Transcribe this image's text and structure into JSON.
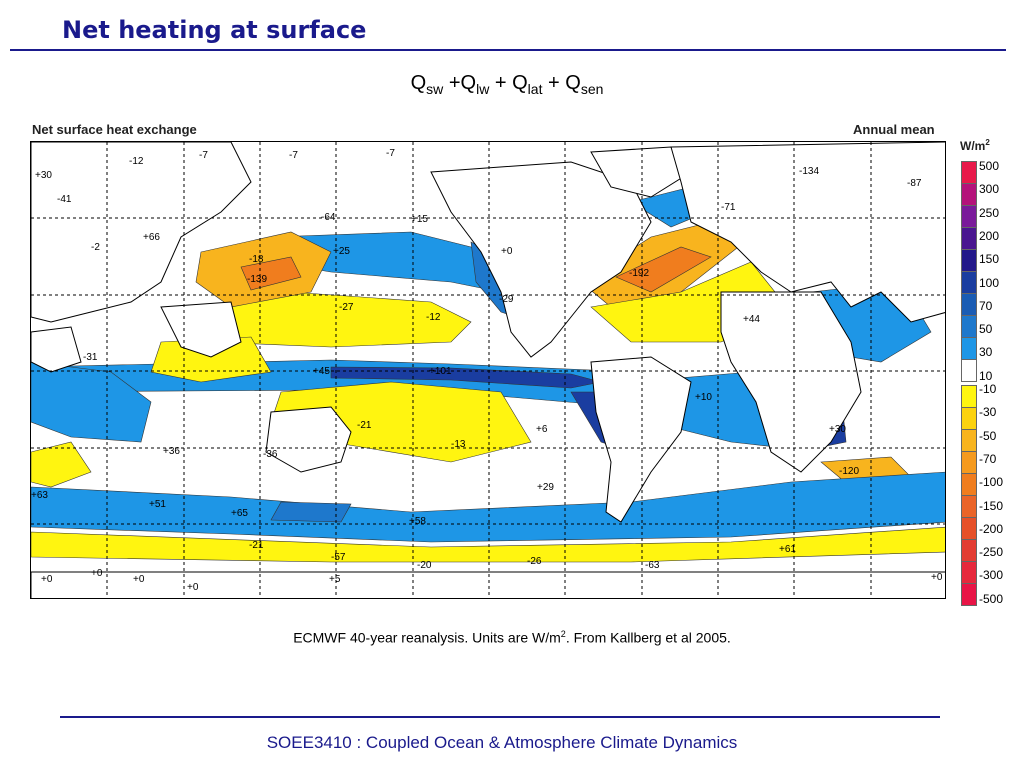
{
  "slide": {
    "title": "Net heating at surface",
    "formula": {
      "q1": "Q",
      "s1": "sw",
      "op1": " +",
      "q2": "Q",
      "s2": "lw",
      "op2": " + ",
      "q3": "Q",
      "s3": "lat",
      "op3": " + ",
      "q4": "Q",
      "s4": "sen"
    },
    "caption_main": "ECMWF 40-year reanalysis. Units are W/m",
    "caption_sup": "2",
    "caption_end": ". From Kallberg et al 2005.",
    "footer": "SOEE3410 : Coupled Ocean & Atmosphere Climate Dynamics"
  },
  "figure": {
    "title": "Net surface heat exchange",
    "period": "Annual mean",
    "unit_base": "W/m",
    "unit_sup": "2",
    "colorbar": {
      "positive": [
        {
          "label": "500",
          "color": "#e8194a"
        },
        {
          "label": "300",
          "color": "#b4127a"
        },
        {
          "label": "250",
          "color": "#7a1a9a"
        },
        {
          "label": "200",
          "color": "#4a1590"
        },
        {
          "label": "150",
          "color": "#23188a"
        },
        {
          "label": "100",
          "color": "#1a3da0"
        },
        {
          "label": "70",
          "color": "#1a5cb4"
        },
        {
          "label": "50",
          "color": "#1e78cc"
        },
        {
          "label": "30",
          "color": "#1e96e6"
        },
        {
          "label": "10",
          "color": "#ffffff"
        }
      ],
      "negative": [
        {
          "label": "-10",
          "color": "#fff510"
        },
        {
          "label": "-30",
          "color": "#fcd20e"
        },
        {
          "label": "-50",
          "color": "#f8b41e"
        },
        {
          "label": "-70",
          "color": "#f59a1e"
        },
        {
          "label": "-100",
          "color": "#f07d1e"
        },
        {
          "label": "-150",
          "color": "#ea6428"
        },
        {
          "label": "-200",
          "color": "#e65028"
        },
        {
          "label": "-250",
          "color": "#e33c32"
        },
        {
          "label": "-300",
          "color": "#e6283c"
        },
        {
          "label": "-500",
          "color": "#e81446"
        }
      ]
    },
    "colors": {
      "land": "#ffffff",
      "positive_30": "#1e96e6",
      "positive_50": "#1e78cc",
      "positive_100": "#1a3da0",
      "negative_10": "#fff510",
      "negative_50": "#f8b41e",
      "negative_100": "#f07d1e"
    },
    "value_labels": [
      {
        "text": "-7"
      },
      {
        "text": "-7"
      },
      {
        "text": "-7"
      },
      {
        "text": "-12"
      },
      {
        "text": "+30"
      },
      {
        "text": "-41"
      },
      {
        "text": "-2"
      },
      {
        "text": "+66"
      },
      {
        "text": "-64"
      },
      {
        "text": "+15"
      },
      {
        "text": "+25"
      },
      {
        "text": "+0"
      },
      {
        "text": "-134"
      },
      {
        "text": "-87"
      },
      {
        "text": "-71"
      },
      {
        "text": "-139"
      },
      {
        "text": "-18"
      },
      {
        "text": "-27"
      },
      {
        "text": "-12"
      },
      {
        "text": "-192"
      },
      {
        "text": "-29"
      },
      {
        "text": "+44"
      },
      {
        "text": "-31"
      },
      {
        "text": "+45"
      },
      {
        "text": "+101"
      },
      {
        "text": "-21"
      },
      {
        "text": "+6"
      },
      {
        "text": "+10"
      },
      {
        "text": "+30"
      },
      {
        "text": "-13"
      },
      {
        "text": "-36"
      },
      {
        "text": "+29"
      },
      {
        "text": "-120"
      },
      {
        "text": "+63"
      },
      {
        "text": "+51"
      },
      {
        "text": "+65"
      },
      {
        "text": "+58"
      },
      {
        "text": "-21"
      },
      {
        "text": "+0"
      },
      {
        "text": "+0"
      },
      {
        "text": "+0"
      },
      {
        "text": "+0"
      },
      {
        "text": "+5"
      },
      {
        "text": "-20"
      },
      {
        "text": "-26"
      },
      {
        "text": "-63"
      },
      {
        "text": "+0"
      },
      {
        "text": "+61"
      },
      {
        "text": "-57"
      },
      {
        "text": "+36"
      }
    ]
  }
}
